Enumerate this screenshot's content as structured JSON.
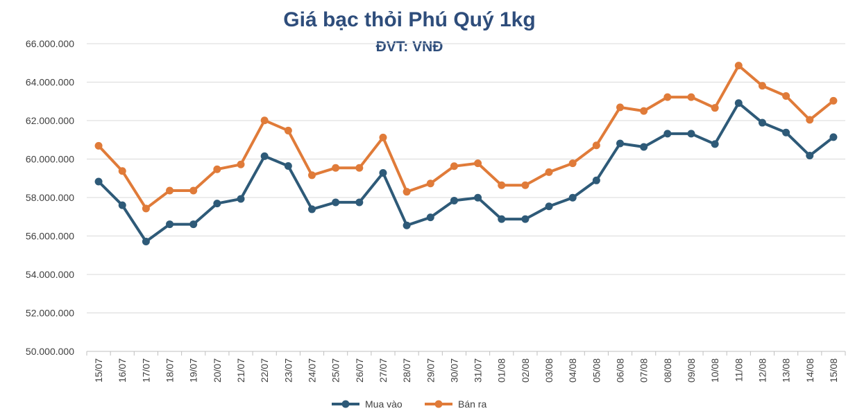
{
  "chart_data": {
    "type": "line",
    "title": "Giá bạc thỏi Phú Quý 1kg",
    "subtitle": "ĐVT: VNĐ",
    "xlabel": "",
    "ylabel": "",
    "ylim": [
      50000000,
      66000000
    ],
    "y_ticks": [
      50000000,
      52000000,
      54000000,
      56000000,
      58000000,
      60000000,
      62000000,
      64000000,
      66000000
    ],
    "y_tick_labels": [
      "50.000.000",
      "52.000.000",
      "54.000.000",
      "56.000.000",
      "58.000.000",
      "60.000.000",
      "62.000.000",
      "64.000.000",
      "66.000.000"
    ],
    "grid": true,
    "legend": "bottom",
    "categories": [
      "15/07",
      "16/07",
      "17/07",
      "18/07",
      "19/07",
      "20/07",
      "21/07",
      "22/07",
      "23/07",
      "24/07",
      "25/07",
      "26/07",
      "27/07",
      "28/07",
      "29/07",
      "30/07",
      "31/07",
      "01/08",
      "02/08",
      "03/08",
      "04/08",
      "05/08",
      "06/08",
      "07/08",
      "08/08",
      "09/08",
      "10/08",
      "11/08",
      "12/08",
      "13/08",
      "14/08",
      "15/08"
    ],
    "series": [
      {
        "name": "Mua vào",
        "color": "#2e5a78",
        "values": [
          58830000,
          57600000,
          55710000,
          56610000,
          56610000,
          57690000,
          57930000,
          60150000,
          59640000,
          57390000,
          57750000,
          57750000,
          59280000,
          56550000,
          56970000,
          57840000,
          57990000,
          56880000,
          56880000,
          57540000,
          57990000,
          58890000,
          60810000,
          60630000,
          61320000,
          61320000,
          60780000,
          62910000,
          61890000,
          61380000,
          60180000,
          61140000
        ]
      },
      {
        "name": "Bán ra",
        "color": "#e07b39",
        "values": [
          60690000,
          59380000,
          57430000,
          58360000,
          58360000,
          59470000,
          59720000,
          62010000,
          61480000,
          59160000,
          59540000,
          59540000,
          61120000,
          58300000,
          58730000,
          59630000,
          59780000,
          58640000,
          58640000,
          59320000,
          59780000,
          60710000,
          62690000,
          62500000,
          63220000,
          63220000,
          62660000,
          64860000,
          63810000,
          63280000,
          62040000,
          63030000
        ]
      }
    ]
  }
}
